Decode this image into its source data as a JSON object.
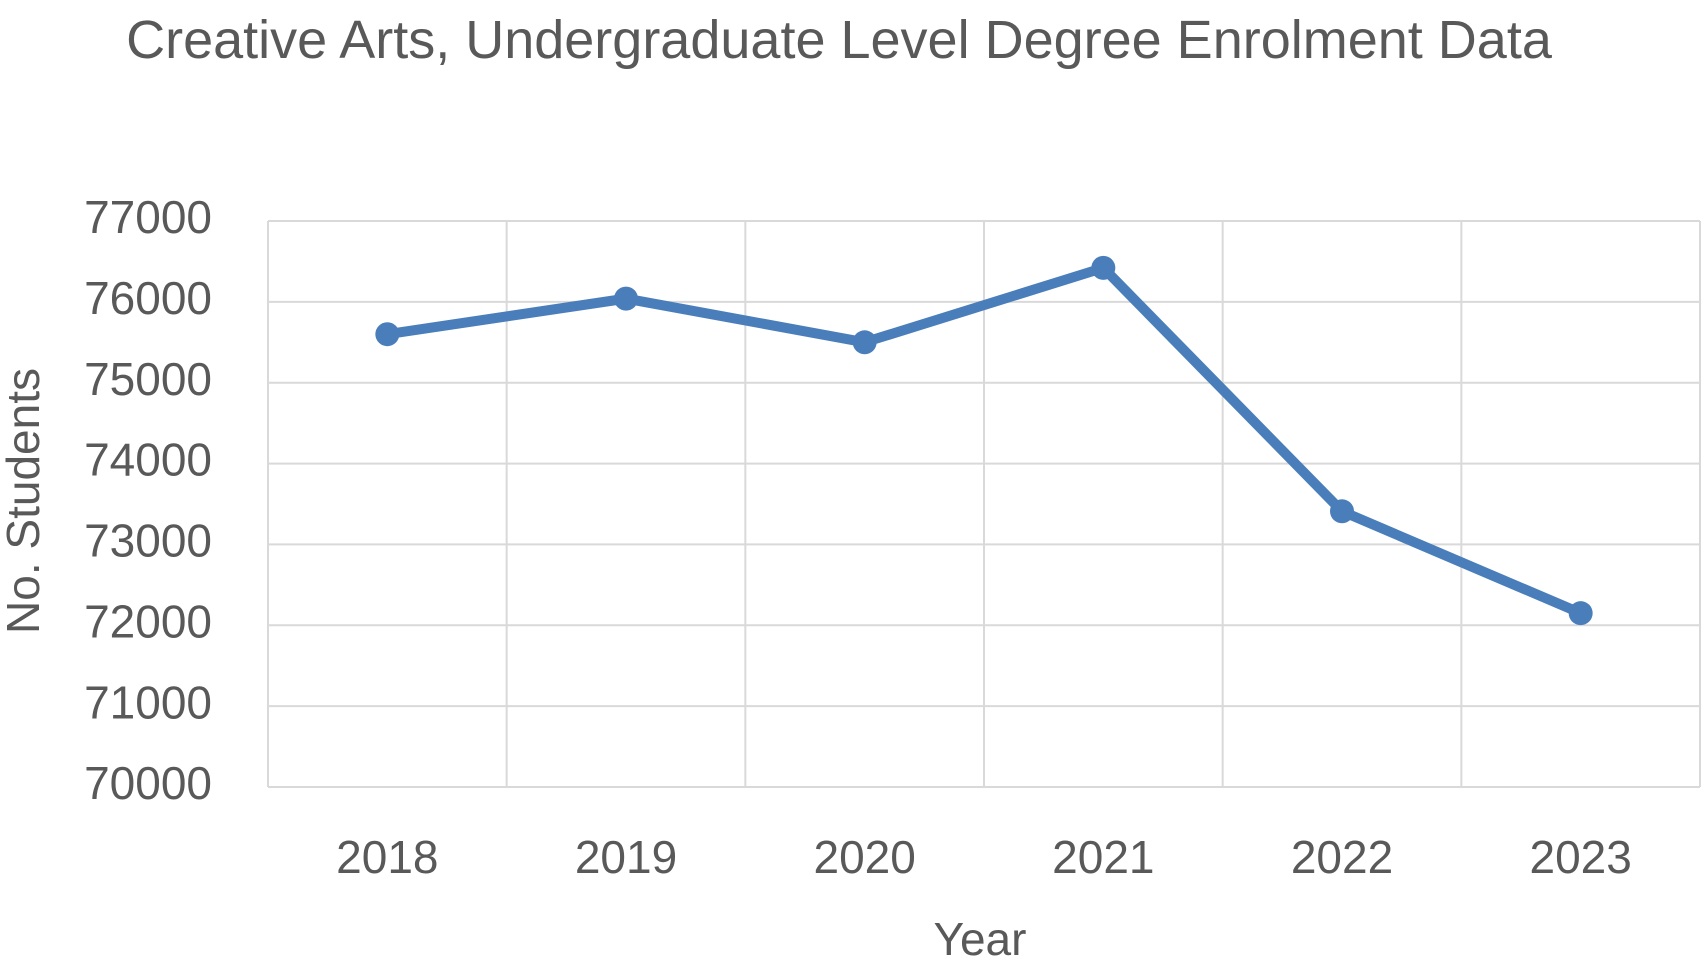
{
  "chart_data": {
    "type": "line",
    "title": "Creative Arts, Undergraduate Level Degree Enrolment Data",
    "x_label": "Year",
    "y_label": "No. Students",
    "categories": [
      "2018",
      "2019",
      "2020",
      "2021",
      "2022",
      "2023"
    ],
    "series": [
      {
        "name": "No. Students",
        "color": "#4a7ebb",
        "values": [
          75600,
          76040,
          75500,
          76420,
          73410,
          72150
        ]
      }
    ],
    "ylim": [
      70000,
      77000
    ],
    "yticks": [
      70000,
      71000,
      72000,
      73000,
      74000,
      75000,
      76000,
      77000
    ],
    "grid": true
  }
}
